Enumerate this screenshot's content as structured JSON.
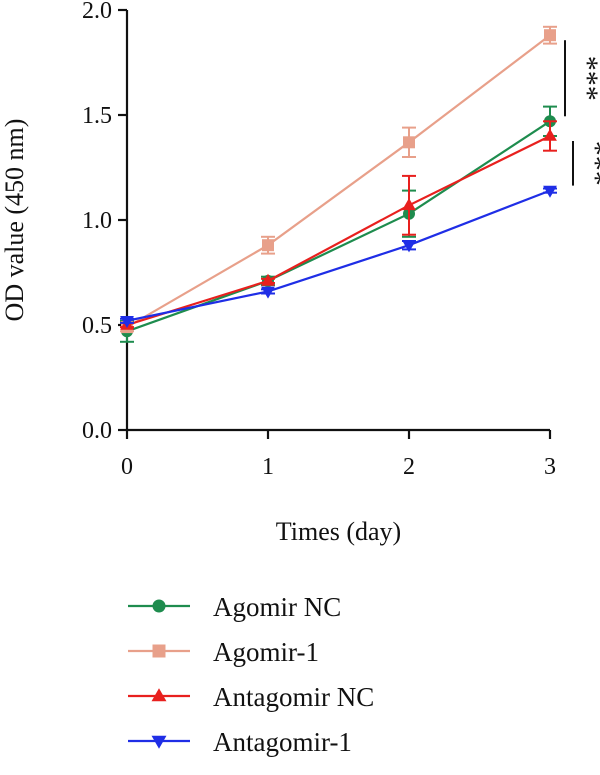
{
  "chart_data": {
    "type": "line",
    "xlabel": "Times (day)",
    "ylabel": "OD value (450 nm)",
    "x": [
      0,
      1,
      2,
      3
    ],
    "xticks": [
      "0",
      "1",
      "2",
      "3"
    ],
    "yticks": [
      "0.0",
      "0.5",
      "1.0",
      "1.5",
      "2.0"
    ],
    "xlim": [
      0,
      3
    ],
    "ylim": [
      0,
      2.0
    ],
    "grid": false,
    "legend_position": "bottom",
    "series": [
      {
        "name": "Agomir NC",
        "marker": "circle",
        "color": "#1e8c4e",
        "values": [
          0.47,
          0.71,
          1.03,
          1.47
        ],
        "errors": [
          0.05,
          0.02,
          0.11,
          0.07
        ]
      },
      {
        "name": "Agomir-1",
        "marker": "square",
        "color": "#e8a08a",
        "values": [
          0.49,
          0.88,
          1.37,
          1.88
        ],
        "errors": [
          0.02,
          0.04,
          0.07,
          0.04
        ]
      },
      {
        "name": "Antagomir NC",
        "marker": "triangle-up",
        "color": "#e8201e",
        "values": [
          0.5,
          0.71,
          1.07,
          1.4
        ],
        "errors": [
          0.01,
          0.01,
          0.14,
          0.07
        ]
      },
      {
        "name": "Antagomir-1",
        "marker": "triangle-down",
        "color": "#1f2ee6",
        "values": [
          0.52,
          0.66,
          0.88,
          1.14
        ],
        "errors": [
          0.01,
          0.01,
          0.02,
          0.01
        ]
      }
    ],
    "annotations": [
      {
        "text": "***",
        "from_series": "Agomir-1",
        "to_series": "Agomir NC",
        "at_x": 3
      },
      {
        "text": "***",
        "from_series": "Antagomir NC",
        "to_series": "Antagomir-1",
        "at_x": 3
      }
    ]
  }
}
